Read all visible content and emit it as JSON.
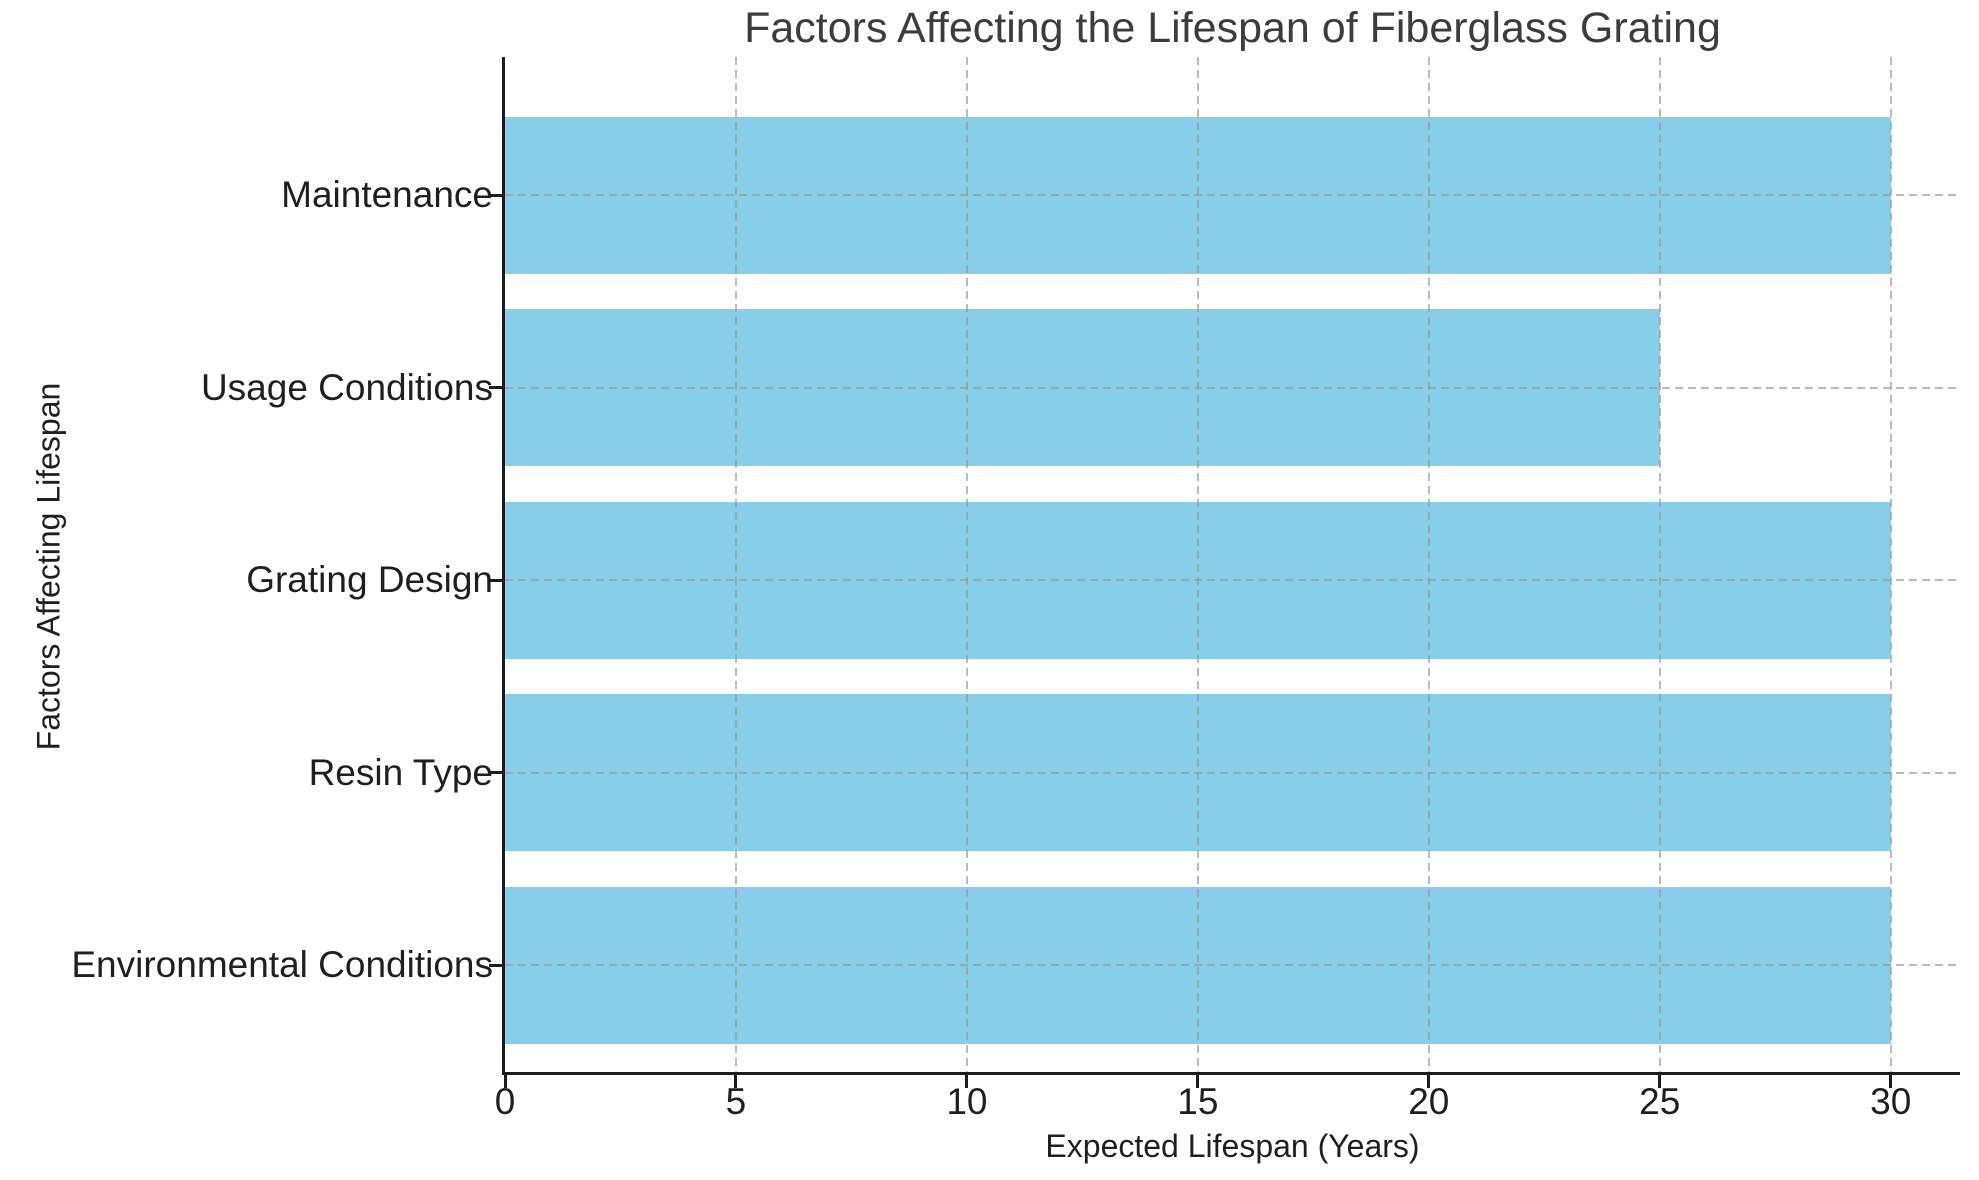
{
  "chart_data": {
    "type": "bar",
    "orientation": "horizontal",
    "title": "Factors Affecting the Lifespan of Fiberglass Grating",
    "xlabel": "Expected Lifespan (Years)",
    "ylabel": "Factors Affecting Lifespan",
    "categories": [
      "Maintenance",
      "Usage Conditions",
      "Grating Design",
      "Resin Type",
      "Environmental Conditions"
    ],
    "values": [
      30,
      25,
      30,
      30,
      30
    ],
    "x_ticks": [
      0,
      5,
      10,
      15,
      20,
      25,
      30
    ],
    "xlim": [
      0,
      31.5
    ],
    "grid": "dashed, drawn over bars, vertical at each x tick and horizontal at each category center",
    "legend": "none",
    "colors": {
      "bar": "#87CEEB",
      "grid": "#b0b0b0",
      "axis": "#1c1c1c",
      "title_text": "#3c3c3c",
      "label_text": "#1f1f1f",
      "background": "#ffffff"
    }
  }
}
